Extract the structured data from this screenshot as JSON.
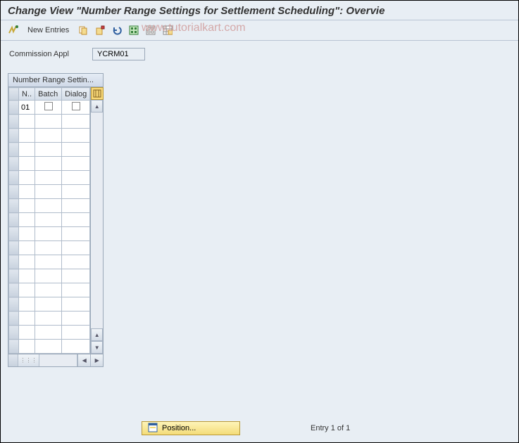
{
  "title": "Change View \"Number Range Settings for Settlement Scheduling\": Overvie",
  "toolbar": {
    "new_entries_label": "New Entries"
  },
  "watermark": "www.tutorialkart.com",
  "form": {
    "commission_label": "Commission Appl",
    "commission_value": "YCRM01"
  },
  "table": {
    "title": "Number Range Settin...",
    "columns": {
      "n": "N..",
      "batch": "Batch",
      "dialog": "Dialog"
    },
    "rows": [
      {
        "n": "01",
        "batch": false,
        "dialog": false
      }
    ],
    "empty_rows": 17
  },
  "footer": {
    "position_label": "Position...",
    "entry_text": "Entry 1 of 1"
  },
  "colors": {
    "background": "#e8eef4",
    "border": "#9aa8b8",
    "header_gradient_top": "#e8eef5",
    "header_gradient_bottom": "#d4dde8",
    "button_yellow_top": "#fef4b8",
    "button_yellow_bottom": "#f4dc78",
    "watermark_color": "#d4a8a8"
  }
}
